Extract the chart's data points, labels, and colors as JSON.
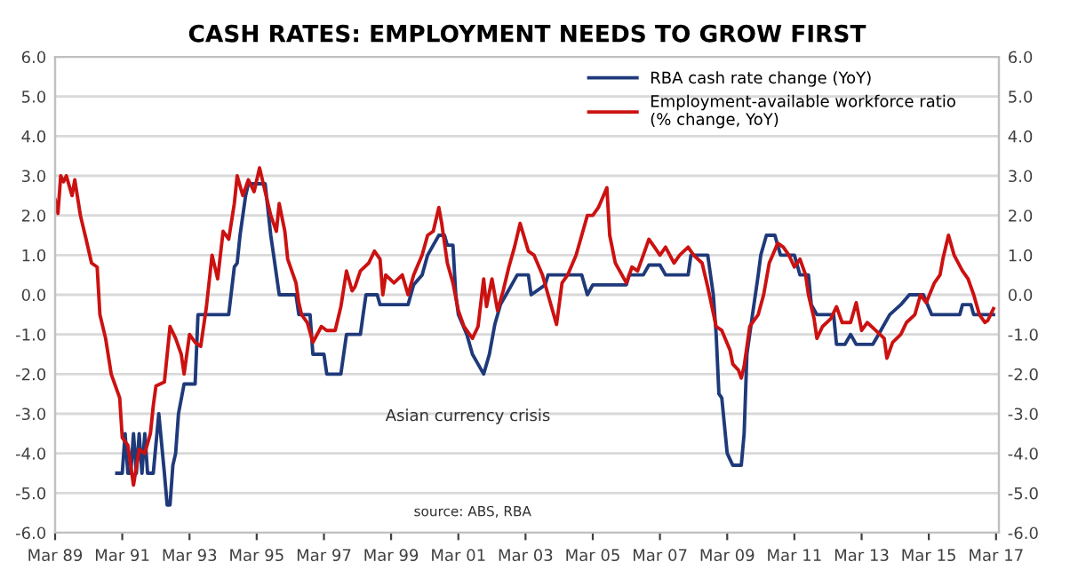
{
  "chart_data": {
    "type": "line",
    "title": "CASH RATES: EMPLOYMENT NEEDS TO GROW FIRST",
    "series": [
      {
        "name": "RBA cash rate change (YoY)",
        "color": "#1f3a7a",
        "x": [
          "1991-01",
          "1991-03",
          "1991-04",
          "1991-05",
          "1991-06",
          "1991-07",
          "1991-08",
          "1991-09",
          "1991-10",
          "1991-11",
          "1991-12",
          "1992-02",
          "1992-04",
          "1992-06",
          "1992-07",
          "1992-08",
          "1992-09",
          "1992-10",
          "1992-11",
          "1993-01",
          "1993-05",
          "1993-06",
          "1994-05",
          "1994-07",
          "1994-08",
          "1994-09",
          "1994-11",
          "1994-12",
          "1995-06",
          "1995-08",
          "1995-09",
          "1995-11",
          "1996-05",
          "1996-06",
          "1996-10",
          "1996-11",
          "1997-03",
          "1997-04",
          "1997-09",
          "1997-11",
          "1998-04",
          "1998-05",
          "1998-06",
          "1998-10",
          "1998-11",
          "1999-09",
          "1999-11",
          "2000-02",
          "2000-04",
          "2000-06",
          "2000-08",
          "2000-10",
          "2000-11",
          "2001-01",
          "2001-02",
          "2001-03",
          "2001-06",
          "2001-08",
          "2001-10",
          "2001-12",
          "2002-02",
          "2002-04",
          "2002-06",
          "2002-08",
          "2002-10",
          "2002-12",
          "2003-04",
          "2003-05",
          "2003-10",
          "2003-11",
          "2004-11",
          "2005-01",
          "2005-03",
          "2006-03",
          "2006-04",
          "2006-09",
          "2006-11",
          "2007-03",
          "2007-05",
          "2008-01",
          "2008-02",
          "2008-08",
          "2008-10",
          "2008-11",
          "2008-12",
          "2009-01",
          "2009-03",
          "2009-05",
          "2009-08",
          "2009-09",
          "2009-10",
          "2009-12",
          "2010-02",
          "2010-03",
          "2010-05",
          "2010-08",
          "2010-10",
          "2011-03",
          "2011-05",
          "2011-08",
          "2011-09",
          "2011-11",
          "2012-05",
          "2012-06",
          "2012-09",
          "2012-11",
          "2013-01",
          "2013-07",
          "2013-09",
          "2013-11",
          "2014-01",
          "2014-05",
          "2014-08",
          "2015-01",
          "2015-04",
          "2016-02",
          "2016-03",
          "2016-06",
          "2016-07",
          "2017-02"
        ],
        "values": [
          -4.5,
          -4.5,
          -3.5,
          -4.5,
          -4.5,
          -3.5,
          -4.5,
          -3.5,
          -4.5,
          -3.5,
          -4.5,
          -4.5,
          -3.0,
          -4.5,
          -5.3,
          -5.3,
          -4.3,
          -4.0,
          -3.0,
          -2.25,
          -2.25,
          -0.5,
          -0.5,
          0.7,
          0.8,
          1.5,
          2.5,
          2.8,
          2.8,
          1.5,
          1.0,
          0.0,
          0.0,
          -0.5,
          -0.5,
          -1.5,
          -1.5,
          -2.0,
          -2.0,
          -1.0,
          -1.0,
          -0.5,
          0.0,
          0.0,
          -0.25,
          -0.25,
          0.25,
          0.5,
          1.0,
          1.25,
          1.5,
          1.5,
          1.25,
          1.25,
          0.0,
          -0.5,
          -1.0,
          -1.5,
          -1.75,
          -2.0,
          -1.5,
          -0.75,
          -0.25,
          0.0,
          0.25,
          0.5,
          0.5,
          0.0,
          0.25,
          0.5,
          0.5,
          0.0,
          0.25,
          0.25,
          0.5,
          0.5,
          0.75,
          0.75,
          0.5,
          0.5,
          1.0,
          1.0,
          0.0,
          -1.0,
          -2.5,
          -2.6,
          -4.0,
          -4.3,
          -4.3,
          -3.5,
          -1.5,
          -0.5,
          0.5,
          1.0,
          1.5,
          1.5,
          1.0,
          1.0,
          0.5,
          0.5,
          -0.25,
          -0.5,
          -0.5,
          -1.25,
          -1.25,
          -1.0,
          -1.25,
          -1.25,
          -1.0,
          -0.75,
          -0.5,
          -0.25,
          0.0,
          0.0,
          -0.5,
          -0.5,
          -0.25,
          -0.25,
          -0.5,
          -0.5
        ]
      },
      {
        "name": "Employment-available workforce ratio\n(% change, YoY)",
        "color": "#cc1111",
        "x": [
          "1989-03",
          "1989-04",
          "1989-05",
          "1989-06",
          "1989-07",
          "1989-09",
          "1989-10",
          "1989-12",
          "1990-02",
          "1990-04",
          "1990-06",
          "1990-07",
          "1990-09",
          "1990-11",
          "1991-02",
          "1991-03",
          "1991-05",
          "1991-07",
          "1991-09",
          "1991-11",
          "1992-01",
          "1992-02",
          "1992-03",
          "1992-06",
          "1992-08",
          "1992-10",
          "1992-12",
          "1993-01",
          "1993-03",
          "1993-05",
          "1993-07",
          "1993-09",
          "1993-11",
          "1994-01",
          "1994-03",
          "1994-05",
          "1994-07",
          "1994-08",
          "1994-10",
          "1994-12",
          "1995-02",
          "1995-04",
          "1995-06",
          "1995-08",
          "1995-10",
          "1995-11",
          "1996-01",
          "1996-02",
          "1996-05",
          "1996-06",
          "1996-07",
          "1996-09",
          "1996-11",
          "1997-02",
          "1997-04",
          "1997-07",
          "1997-09",
          "1997-11",
          "1998-01",
          "1998-02",
          "1998-04",
          "1998-07",
          "1998-09",
          "1998-11",
          "1998-12",
          "1999-01",
          "1999-04",
          "1999-07",
          "1999-09",
          "1999-11",
          "2000-02",
          "2000-04",
          "2000-06",
          "2000-08",
          "2000-09",
          "2000-11",
          "2001-01",
          "2001-03",
          "2001-05",
          "2001-08",
          "2001-10",
          "2001-12",
          "2002-01",
          "2002-03",
          "2002-05",
          "2002-07",
          "2002-09",
          "2002-11",
          "2003-01",
          "2003-04",
          "2003-06",
          "2003-09",
          "2003-11",
          "2004-02",
          "2004-04",
          "2004-06",
          "2004-09",
          "2004-11",
          "2005-01",
          "2005-03",
          "2005-05",
          "2005-08",
          "2005-09",
          "2005-11",
          "2006-03",
          "2006-05",
          "2006-07",
          "2006-09",
          "2006-11",
          "2007-01",
          "2007-03",
          "2007-05",
          "2007-08",
          "2007-10",
          "2008-01",
          "2008-03",
          "2008-06",
          "2008-08",
          "2008-11",
          "2009-01",
          "2009-04",
          "2009-05",
          "2009-07",
          "2009-08",
          "2009-09",
          "2009-11",
          "2010-02",
          "2010-04",
          "2010-06",
          "2010-09",
          "2010-11",
          "2011-01",
          "2011-03",
          "2011-05",
          "2011-07",
          "2011-08",
          "2011-10",
          "2011-11",
          "2012-01",
          "2012-04",
          "2012-06",
          "2012-08",
          "2012-11",
          "2013-01",
          "2013-03",
          "2013-05",
          "2013-08",
          "2013-11",
          "2013-12",
          "2014-02",
          "2014-05",
          "2014-07",
          "2014-10",
          "2014-12",
          "2015-02",
          "2015-05",
          "2015-07",
          "2015-08",
          "2015-10",
          "2015-12",
          "2016-03",
          "2016-05",
          "2016-07",
          "2016-09",
          "2016-11",
          "2016-12",
          "2017-02"
        ],
        "values": [
          2.4,
          2.05,
          3.0,
          2.85,
          3.0,
          2.5,
          2.9,
          2.0,
          1.4,
          0.8,
          0.7,
          -0.5,
          -1.1,
          -2.0,
          -2.6,
          -3.6,
          -3.8,
          -4.8,
          -3.9,
          -4.0,
          -3.5,
          -2.8,
          -2.3,
          -2.2,
          -0.8,
          -1.1,
          -1.5,
          -2.0,
          -1.0,
          -1.2,
          -1.3,
          -0.3,
          1.0,
          0.4,
          1.6,
          1.4,
          2.3,
          3.0,
          2.5,
          2.9,
          2.6,
          3.2,
          2.6,
          2.0,
          1.6,
          2.3,
          1.6,
          0.9,
          0.3,
          -0.2,
          -0.5,
          -0.7,
          -1.2,
          -0.8,
          -0.9,
          -0.9,
          -0.3,
          0.6,
          0.1,
          0.2,
          0.6,
          0.8,
          1.1,
          0.9,
          0.0,
          0.5,
          0.3,
          0.5,
          0.0,
          0.5,
          1.0,
          1.5,
          1.6,
          2.2,
          1.8,
          0.8,
          0.3,
          -0.4,
          -0.8,
          -1.1,
          -0.8,
          0.4,
          -0.3,
          0.4,
          -0.4,
          0.1,
          0.7,
          1.2,
          1.8,
          1.1,
          1.0,
          0.5,
          0.0,
          -0.75,
          0.3,
          0.5,
          1.0,
          1.5,
          2.0,
          2.0,
          2.2,
          2.7,
          1.5,
          0.8,
          0.3,
          0.7,
          0.6,
          1.0,
          1.4,
          1.2,
          1.0,
          1.2,
          0.8,
          1.0,
          1.2,
          1.0,
          0.8,
          0.2,
          -0.8,
          -0.9,
          -1.4,
          -1.75,
          -1.9,
          -2.1,
          -1.8,
          -0.8,
          -0.5,
          0.0,
          0.8,
          1.3,
          1.2,
          1.0,
          0.7,
          0.9,
          0.5,
          0.0,
          -0.6,
          -1.1,
          -0.8,
          -0.6,
          -0.3,
          -0.7,
          -0.7,
          -0.2,
          -0.9,
          -0.7,
          -0.9,
          -1.1,
          -1.6,
          -1.2,
          -1.0,
          -0.7,
          -0.5,
          0.0,
          -0.2,
          0.3,
          0.5,
          0.9,
          1.5,
          1.0,
          0.6,
          0.4,
          0.0,
          -0.5,
          -0.7,
          -0.65,
          -0.35
        ]
      }
    ],
    "xlim": [
      "1989-03",
      "2017-04"
    ],
    "xticks": [
      {
        "value": "1989-03",
        "label": "Mar 89"
      },
      {
        "value": "1991-03",
        "label": "Mar 91"
      },
      {
        "value": "1993-03",
        "label": "Mar 93"
      },
      {
        "value": "1995-03",
        "label": "Mar 95"
      },
      {
        "value": "1997-03",
        "label": "Mar 97"
      },
      {
        "value": "1999-03",
        "label": "Mar 99"
      },
      {
        "value": "2001-03",
        "label": "Mar 01"
      },
      {
        "value": "2003-03",
        "label": "Mar 03"
      },
      {
        "value": "2005-03",
        "label": "Mar 05"
      },
      {
        "value": "2007-03",
        "label": "Mar 07"
      },
      {
        "value": "2009-03",
        "label": "Mar 09"
      },
      {
        "value": "2011-03",
        "label": "Mar 11"
      },
      {
        "value": "2013-03",
        "label": "Mar 13"
      },
      {
        "value": "2015-03",
        "label": "Mar 15"
      },
      {
        "value": "2017-03",
        "label": "Mar 17"
      }
    ],
    "ylim": [
      -6,
      6
    ],
    "yticks": [
      {
        "value": -6,
        "label": "-6.0"
      },
      {
        "value": -5,
        "label": "-5.0"
      },
      {
        "value": -4,
        "label": "-4.0"
      },
      {
        "value": -3,
        "label": "-3.0"
      },
      {
        "value": -2,
        "label": "-2.0"
      },
      {
        "value": -1,
        "label": "-1.0"
      },
      {
        "value": 0,
        "label": "0.0"
      },
      {
        "value": 1,
        "label": "1.0"
      },
      {
        "value": 2,
        "label": "2.0"
      },
      {
        "value": 3,
        "label": "3.0"
      },
      {
        "value": 4,
        "label": "4.0"
      },
      {
        "value": 5,
        "label": "5.0"
      },
      {
        "value": 6,
        "label": "6.0"
      }
    ],
    "y2lim": [
      -6,
      6
    ],
    "y2ticks": [
      {
        "value": -6,
        "label": "-6.0"
      },
      {
        "value": -5,
        "label": "-5.0"
      },
      {
        "value": -4,
        "label": "-4.0"
      },
      {
        "value": -3,
        "label": "-3.0"
      },
      {
        "value": -2,
        "label": "-2.0"
      },
      {
        "value": -1,
        "label": "-1.0"
      },
      {
        "value": 0,
        "label": "0.0"
      },
      {
        "value": 1,
        "label": "1.0"
      },
      {
        "value": 2,
        "label": "2.0"
      },
      {
        "value": 3,
        "label": "3.0"
      },
      {
        "value": 4,
        "label": "4.0"
      },
      {
        "value": 5,
        "label": "5.0"
      },
      {
        "value": 6,
        "label": "6.0"
      }
    ],
    "grid": "y",
    "legend": "top right",
    "annotations": [
      "Asian currency crisis",
      "source: ABS, RBA"
    ]
  }
}
